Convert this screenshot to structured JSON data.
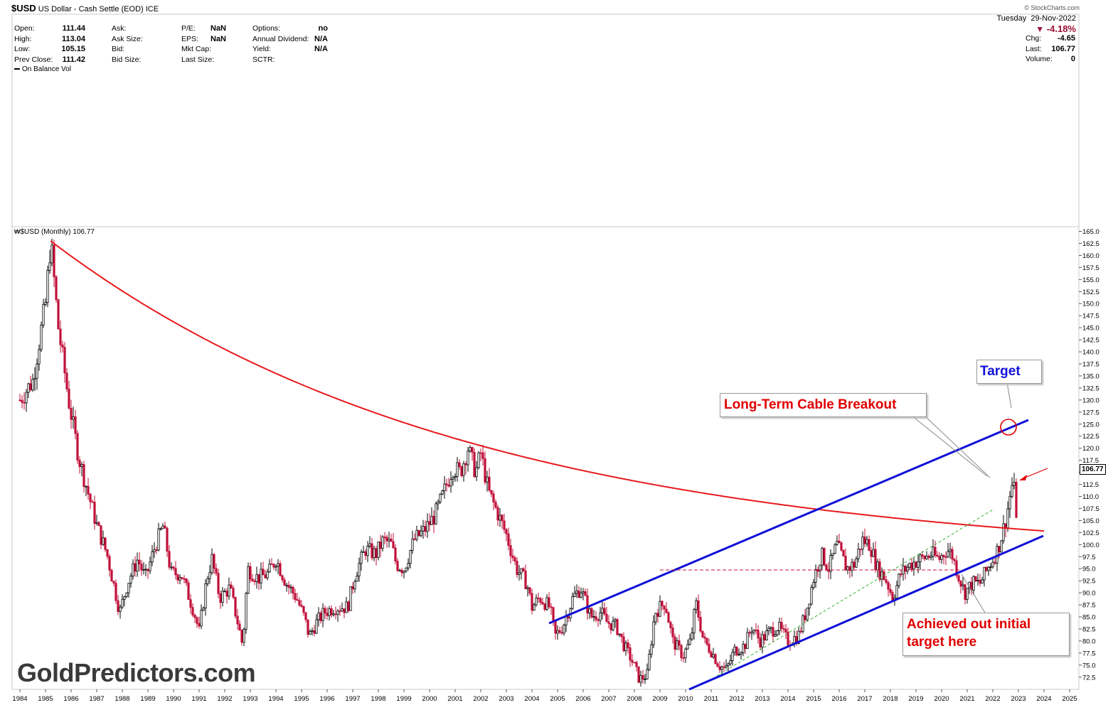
{
  "header": {
    "symbol": "$USD",
    "name": "US Dollar - Cash Settle (EOD)",
    "exchange": "ICE",
    "fields_col1": [
      {
        "label": "Open:",
        "value": "111.44"
      },
      {
        "label": "High:",
        "value": "113.04"
      },
      {
        "label": "Low:",
        "value": "105.15"
      },
      {
        "label": "Prev Close:",
        "value": "111.42"
      }
    ],
    "fields_col2": [
      {
        "label": "Ask:",
        "value": ""
      },
      {
        "label": "Ask Size:",
        "value": ""
      },
      {
        "label": "Bid:",
        "value": ""
      },
      {
        "label": "Bid Size:",
        "value": ""
      }
    ],
    "fields_col3": [
      {
        "label": "P/E:",
        "value": "NaN"
      },
      {
        "label": "EPS:",
        "value": "NaN"
      },
      {
        "label": "Mkt Cap:",
        "value": ""
      },
      {
        "label": "Last Size:",
        "value": ""
      }
    ],
    "fields_col4": [
      {
        "label": "Options:",
        "value": "no"
      },
      {
        "label": "Annual Dividend:",
        "value": "N/A"
      },
      {
        "label": "Yield:",
        "value": "N/A"
      },
      {
        "label": "SCTR:",
        "value": ""
      }
    ],
    "credit": "© StockCharts.com",
    "day": "Tuesday",
    "date": "29-Nov-2022",
    "pct_change": "-4.18%",
    "right_fields": [
      {
        "label": "Chg:",
        "value": "-4.65"
      },
      {
        "label": "Last:",
        "value": "106.77"
      },
      {
        "label": "Volume:",
        "value": "0"
      }
    ]
  },
  "indicator_label": "On Balance Vol",
  "price_label": "$USD (Monthly) 106.77",
  "last_price_tag": "106.77",
  "annotations": {
    "target": "Target",
    "breakout": "Long-Term Cable Breakout",
    "achieved_line1": "Achieved out initial",
    "achieved_line2": "target here"
  },
  "watermark": "GoldPredictors.com",
  "colors": {
    "up_candle": "#000000",
    "down_candle": "#c0103a",
    "curve": "#e8191c",
    "channel": "#1010d8",
    "green_dashed": "#3bb534",
    "support_dashed": "#c0103a",
    "callout_red": "#e00000",
    "callout_blue": "#1010d8"
  },
  "chart_data": {
    "type": "candlestick",
    "title": "$USD (Monthly) 106.77",
    "x_ticks": [
      "1984",
      "1985",
      "1986",
      "1987",
      "1988",
      "1989",
      "1990",
      "1991",
      "1992",
      "1993",
      "1994",
      "1995",
      "1996",
      "1997",
      "1998",
      "1999",
      "2000",
      "2001",
      "2002",
      "2003",
      "2004",
      "2005",
      "2006",
      "2007",
      "2008",
      "2009",
      "2010",
      "2011",
      "2012",
      "2013",
      "2014",
      "2015",
      "2016",
      "2017",
      "2018",
      "2019",
      "2020",
      "2021",
      "2022",
      "2023",
      "2024",
      "2025"
    ],
    "y_ticks": [
      "72.5",
      "75.0",
      "77.5",
      "80.0",
      "82.5",
      "85.0",
      "87.5",
      "90.0",
      "92.5",
      "95.0",
      "97.5",
      "100.0",
      "102.5",
      "105.0",
      "107.5",
      "110.0",
      "112.5",
      "115.0",
      "117.5",
      "120.0",
      "122.5",
      "125.0",
      "127.5",
      "130.0",
      "132.5",
      "135.0",
      "137.5",
      "140.0",
      "142.5",
      "145.0",
      "147.5",
      "150.0",
      "152.5",
      "155.0",
      "157.5",
      "160.0",
      "162.5",
      "165.0"
    ],
    "ylim": [
      71,
      165
    ],
    "xlim": [
      1984.0,
      2025.7
    ],
    "close_path": [
      [
        1984.0,
        130
      ],
      [
        1984.5,
        134
      ],
      [
        1985.0,
        150
      ],
      [
        1985.2,
        163
      ],
      [
        1985.5,
        145
      ],
      [
        1985.9,
        130
      ],
      [
        1986.3,
        118
      ],
      [
        1986.7,
        110
      ],
      [
        1987.0,
        104
      ],
      [
        1987.4,
        98
      ],
      [
        1987.9,
        86
      ],
      [
        1988.2,
        92
      ],
      [
        1988.6,
        97
      ],
      [
        1988.9,
        93
      ],
      [
        1989.3,
        100
      ],
      [
        1989.6,
        104
      ],
      [
        1989.9,
        94
      ],
      [
        1990.3,
        94
      ],
      [
        1990.8,
        86
      ],
      [
        1991.0,
        82
      ],
      [
        1991.3,
        93
      ],
      [
        1991.5,
        97
      ],
      [
        1991.8,
        89
      ],
      [
        1992.2,
        91
      ],
      [
        1992.5,
        84
      ],
      [
        1992.7,
        79
      ],
      [
        1992.9,
        95
      ],
      [
        1993.3,
        93
      ],
      [
        1993.7,
        94
      ],
      [
        1994.0,
        97
      ],
      [
        1994.4,
        92
      ],
      [
        1994.8,
        89
      ],
      [
        1995.1,
        85
      ],
      [
        1995.3,
        81
      ],
      [
        1995.6,
        84
      ],
      [
        1995.9,
        86
      ],
      [
        1996.3,
        87
      ],
      [
        1996.8,
        87
      ],
      [
        1997.1,
        94
      ],
      [
        1997.5,
        99
      ],
      [
        1997.9,
        98
      ],
      [
        1998.2,
        101
      ],
      [
        1998.5,
        100
      ],
      [
        1998.7,
        96
      ],
      [
        1999.0,
        95
      ],
      [
        1999.4,
        101
      ],
      [
        1999.8,
        103
      ],
      [
        2000.2,
        106
      ],
      [
        2000.5,
        110
      ],
      [
        2000.9,
        116
      ],
      [
        2001.2,
        115
      ],
      [
        2001.5,
        120
      ],
      [
        2001.8,
        115
      ],
      [
        2002.0,
        119
      ],
      [
        2002.3,
        111
      ],
      [
        2002.7,
        106
      ],
      [
        2003.0,
        102
      ],
      [
        2003.4,
        95
      ],
      [
        2003.8,
        92
      ],
      [
        2004.0,
        87
      ],
      [
        2004.3,
        89
      ],
      [
        2004.7,
        87
      ],
      [
        2004.9,
        81
      ],
      [
        2005.2,
        83
      ],
      [
        2005.6,
        89
      ],
      [
        2005.9,
        91
      ],
      [
        2006.3,
        85
      ],
      [
        2006.7,
        86
      ],
      [
        2006.9,
        84
      ],
      [
        2007.3,
        83
      ],
      [
        2007.6,
        79
      ],
      [
        2007.9,
        76
      ],
      [
        2008.2,
        72
      ],
      [
        2008.5,
        73
      ],
      [
        2008.8,
        86
      ],
      [
        2009.2,
        88
      ],
      [
        2009.5,
        80
      ],
      [
        2009.9,
        77
      ],
      [
        2010.2,
        80
      ],
      [
        2010.4,
        88
      ],
      [
        2010.7,
        80
      ],
      [
        2011.0,
        78
      ],
      [
        2011.3,
        75
      ],
      [
        2011.6,
        74
      ],
      [
        2011.9,
        78
      ],
      [
        2012.3,
        79
      ],
      [
        2012.6,
        83
      ],
      [
        2012.9,
        80
      ],
      [
        2013.3,
        82
      ],
      [
        2013.6,
        83
      ],
      [
        2014.0,
        80
      ],
      [
        2014.4,
        81
      ],
      [
        2014.7,
        86
      ],
      [
        2015.0,
        93
      ],
      [
        2015.3,
        98
      ],
      [
        2015.6,
        95
      ],
      [
        2015.9,
        100
      ],
      [
        2016.3,
        95
      ],
      [
        2016.6,
        96
      ],
      [
        2016.9,
        101
      ],
      [
        2017.2,
        100
      ],
      [
        2017.5,
        95
      ],
      [
        2017.8,
        93
      ],
      [
        2018.1,
        89
      ],
      [
        2018.4,
        94
      ],
      [
        2018.8,
        96
      ],
      [
        2019.2,
        97
      ],
      [
        2019.6,
        98
      ],
      [
        2019.9,
        97
      ],
      [
        2020.2,
        99
      ],
      [
        2020.4,
        98
      ],
      [
        2020.7,
        93
      ],
      [
        2020.9,
        90
      ],
      [
        2021.2,
        92
      ],
      [
        2021.5,
        92
      ],
      [
        2021.9,
        96
      ],
      [
        2022.2,
        99
      ],
      [
        2022.5,
        105
      ],
      [
        2022.7,
        111
      ],
      [
        2022.8,
        113.5
      ],
      [
        2022.9,
        106.77
      ]
    ]
  }
}
